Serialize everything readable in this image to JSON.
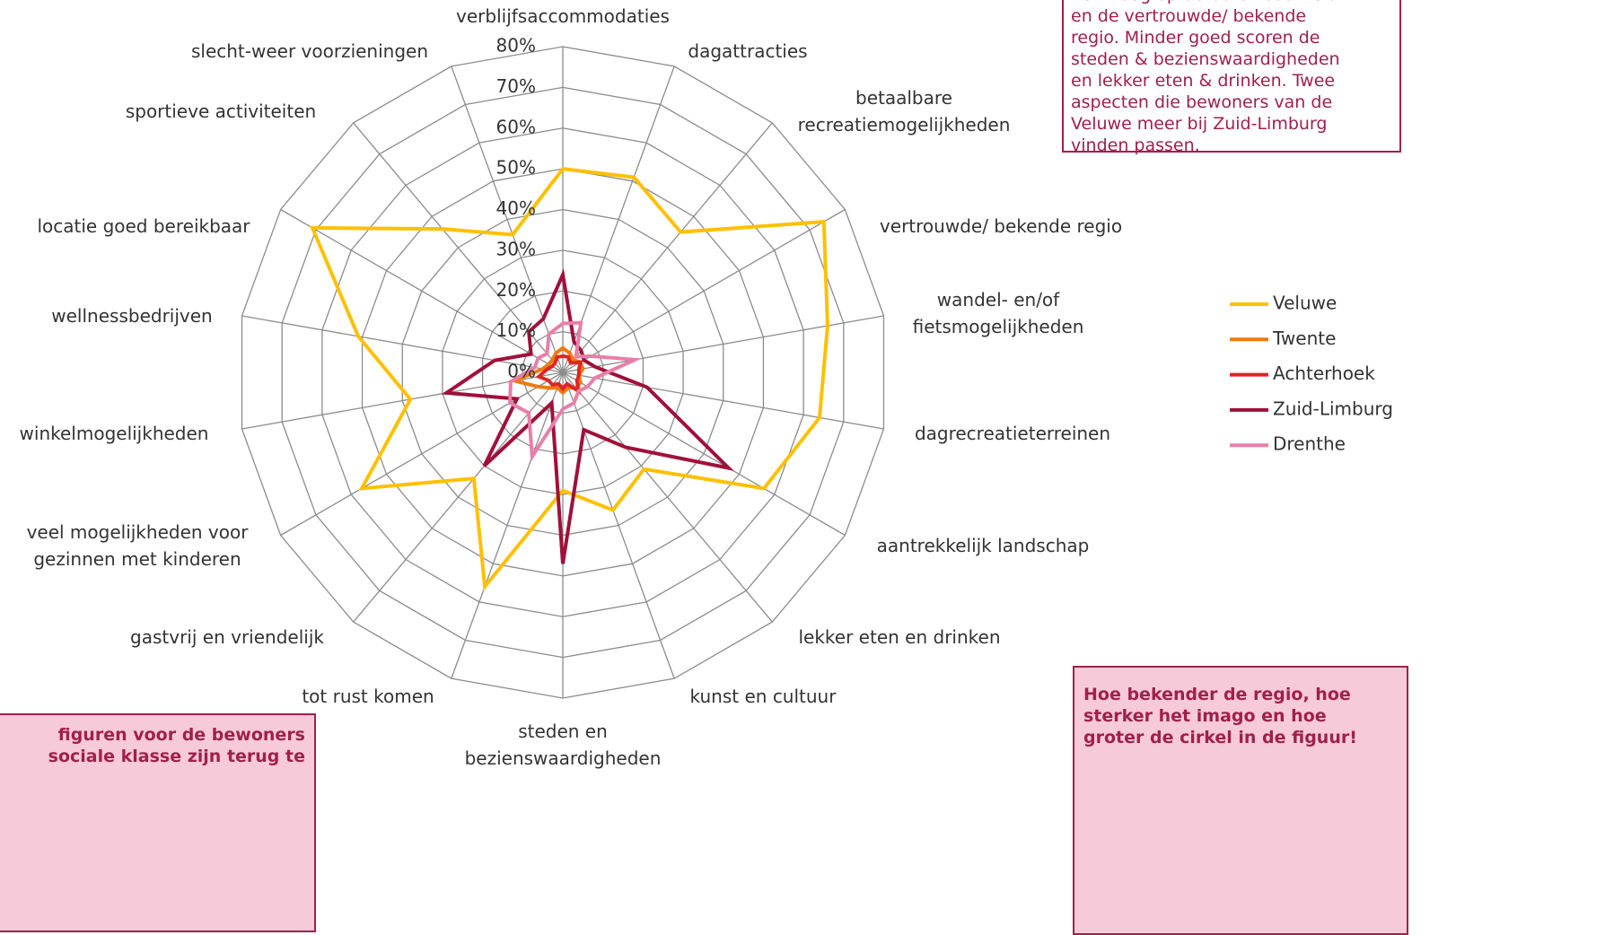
{
  "chart_data": {
    "type": "radar",
    "categories": [
      "verblijfsaccommodaties",
      "dagattracties",
      "betaalbare\nrecreatiemogelijkheden",
      "vertrouwde/ bekende regio",
      "wandel- en/of\nfietsmogelijkheden",
      "dagrecreatieterreinen",
      "aantrekkelijk landschap",
      "lekker eten en drinken",
      "kunst en cultuur",
      "steden en\nbezienswaardigheden",
      "tot rust komen",
      "gastvrij en vriendelijk",
      "veel mogelijkheden voor\ngezinnen met kinderen",
      "winkelmogelijkheden",
      "wellnessbedrijven",
      "locatie goed bereikbaar",
      "sportieve activiteiten",
      "slecht-weer voorzieningen"
    ],
    "series": [
      {
        "name": "Veluwe",
        "color": "#ffc000",
        "values": [
          50,
          51,
          45,
          74,
          66,
          64,
          57,
          31,
          36,
          29,
          56,
          34,
          57,
          38,
          51,
          71,
          46,
          36
        ]
      },
      {
        "name": "Twente",
        "color": "#ee7a10",
        "values": [
          6,
          5,
          4,
          5,
          5,
          4,
          5,
          5,
          4,
          5,
          4,
          5,
          7,
          12,
          5,
          4,
          4,
          5
        ]
      },
      {
        "name": "Achterhoek",
        "color": "#e02525",
        "values": [
          4,
          4,
          3,
          5,
          4,
          4,
          4,
          6,
          3,
          4,
          3,
          4,
          4,
          6,
          4,
          3,
          3,
          4
        ]
      },
      {
        "name": "Zuid-Limburg",
        "color": "#a0103a",
        "values": [
          24,
          8,
          7,
          6,
          8,
          21,
          47,
          24,
          15,
          47,
          8,
          30,
          13,
          29,
          17,
          9,
          13,
          14
        ]
      },
      {
        "name": "Drenthe",
        "color": "#e87fa8",
        "values": [
          12,
          13,
          5,
          8,
          18,
          8,
          7,
          6,
          8,
          9,
          22,
          13,
          15,
          13,
          7,
          7,
          6,
          10
        ]
      }
    ],
    "rlim": [
      0,
      80
    ],
    "rticks": [
      {
        "value": 0,
        "label": "0%"
      },
      {
        "value": 10,
        "label": "10%"
      },
      {
        "value": 20,
        "label": "20%"
      },
      {
        "value": 30,
        "label": "30%"
      },
      {
        "value": 40,
        "label": "40%"
      },
      {
        "value": 50,
        "label": "50%"
      },
      {
        "value": 60,
        "label": "60%"
      },
      {
        "value": 70,
        "label": "70%"
      },
      {
        "value": 80,
        "label": "80%"
      }
    ],
    "grid": true,
    "legend": "right",
    "annotations": [
      [
        "nen hoog op de bereikbaarheid",
        "en de vertrouwde/ bekende",
        "regio. Minder goed scoren de",
        "steden & bezienswaardigheden",
        "en lekker eten & drinken. Twee",
        "aspecten die bewoners van de",
        "Veluwe meer bij Zuid-Limburg",
        "vinden passen."
      ],
      [
        "Hoe bekender de regio, hoe",
        "sterker het imago en hoe",
        "groter de cirkel in de figuur!"
      ],
      [
        "figuren voor de bewoners",
        "sociale klasse zijn terug te"
      ]
    ]
  }
}
